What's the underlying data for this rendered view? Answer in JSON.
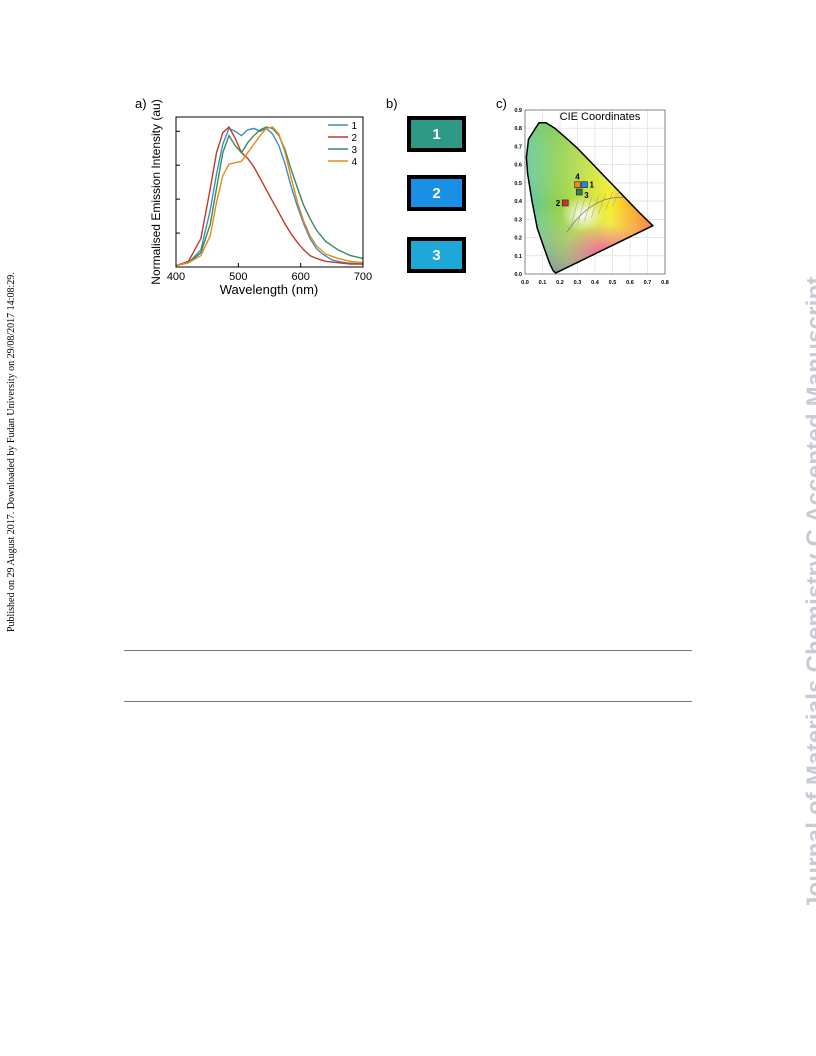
{
  "side_note": "Published on 29 August 2017. Downloaded by Fudan University on 29/08/2017 14:08:29.",
  "watermark": "Journal of Materials Chemistry C Accepted Manuscript",
  "panels": {
    "a": "a)",
    "b": "b)",
    "c": "c)"
  },
  "tiles": [
    {
      "label": "1",
      "color": "#2e9a86"
    },
    {
      "label": "2",
      "color": "#1a8fe6"
    },
    {
      "label": "3",
      "color": "#1ea8d8"
    }
  ],
  "chart_data": [
    {
      "type": "line",
      "title": "",
      "xlabel": "Wavelength (nm)",
      "ylabel": "Normalised Emission Intensity (au)",
      "xlim": [
        400,
        700
      ],
      "ylim": [
        0,
        1.05
      ],
      "xticks": [
        "400",
        "500",
        "600",
        "700"
      ],
      "legend_position": "top-right",
      "series": [
        {
          "name": "1",
          "color": "#3b8fc0",
          "x": [
            400,
            420,
            440,
            455,
            465,
            475,
            485,
            495,
            505,
            515,
            525,
            535,
            545,
            555,
            565,
            575,
            585,
            595,
            605,
            615,
            625,
            635,
            650,
            670,
            700
          ],
          "y": [
            0.01,
            0.03,
            0.12,
            0.4,
            0.65,
            0.86,
            0.97,
            0.95,
            0.92,
            0.96,
            0.97,
            0.95,
            0.97,
            0.93,
            0.85,
            0.72,
            0.56,
            0.42,
            0.3,
            0.2,
            0.13,
            0.09,
            0.05,
            0.03,
            0.02
          ]
        },
        {
          "name": "2",
          "color": "#c0392b",
          "x": [
            400,
            420,
            440,
            455,
            465,
            475,
            485,
            495,
            505,
            515,
            525,
            535,
            545,
            555,
            565,
            575,
            585,
            595,
            605,
            615,
            625,
            640,
            660,
            680,
            700
          ],
          "y": [
            0.01,
            0.04,
            0.2,
            0.55,
            0.8,
            0.94,
            0.98,
            0.9,
            0.8,
            0.76,
            0.7,
            0.62,
            0.54,
            0.46,
            0.38,
            0.3,
            0.23,
            0.17,
            0.12,
            0.08,
            0.06,
            0.04,
            0.03,
            0.02,
            0.02
          ]
        },
        {
          "name": "3",
          "color": "#3a8a5a",
          "x": [
            400,
            420,
            440,
            455,
            465,
            475,
            485,
            495,
            505,
            515,
            525,
            535,
            545,
            555,
            565,
            575,
            585,
            595,
            605,
            615,
            625,
            640,
            660,
            680,
            700
          ],
          "y": [
            0.01,
            0.03,
            0.1,
            0.3,
            0.55,
            0.8,
            0.92,
            0.85,
            0.8,
            0.87,
            0.92,
            0.96,
            0.98,
            0.97,
            0.92,
            0.82,
            0.68,
            0.55,
            0.43,
            0.34,
            0.26,
            0.18,
            0.12,
            0.08,
            0.06
          ]
        },
        {
          "name": "4",
          "color": "#e8891a",
          "x": [
            400,
            420,
            440,
            455,
            465,
            475,
            485,
            495,
            505,
            515,
            525,
            535,
            545,
            555,
            565,
            575,
            585,
            595,
            605,
            615,
            625,
            640,
            660,
            680,
            700
          ],
          "y": [
            0.01,
            0.03,
            0.08,
            0.22,
            0.45,
            0.64,
            0.72,
            0.73,
            0.74,
            0.8,
            0.86,
            0.92,
            0.97,
            0.98,
            0.93,
            0.8,
            0.62,
            0.45,
            0.32,
            0.22,
            0.15,
            0.09,
            0.06,
            0.04,
            0.03
          ]
        }
      ]
    },
    {
      "type": "scatter",
      "title": "CIE Coordinates",
      "xlim": [
        0,
        0.8
      ],
      "ylim": [
        0,
        0.9
      ],
      "xticks": [
        "0.0",
        "0.1",
        "0.2",
        "0.3",
        "0.4",
        "0.5",
        "0.6",
        "0.7",
        "0.8"
      ],
      "yticks": [
        "0.0",
        "0.1",
        "0.2",
        "0.3",
        "0.4",
        "0.5",
        "0.6",
        "0.7",
        "0.8",
        "0.9"
      ],
      "grid": true,
      "points": [
        {
          "label": "1",
          "x": 0.34,
          "y": 0.49,
          "color": "#1e88e5"
        },
        {
          "label": "2",
          "x": 0.23,
          "y": 0.39,
          "color": "#d32f2f"
        },
        {
          "label": "3",
          "x": 0.31,
          "y": 0.45,
          "color": "#2e7d4f"
        },
        {
          "label": "4",
          "x": 0.3,
          "y": 0.49,
          "color": "#ef8a1a"
        }
      ]
    }
  ]
}
